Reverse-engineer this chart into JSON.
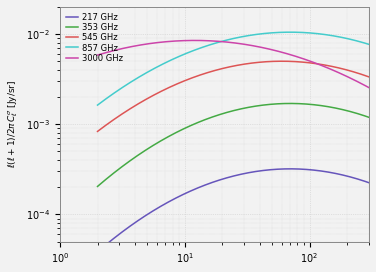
{
  "ylabel": "$\\ell(\\ell+1)/2\\pi\\, C_\\ell^{\\sigma}$ [Jy/sr]",
  "xlim": [
    1,
    300
  ],
  "ylim": [
    5e-05,
    0.02
  ],
  "channel_params": [
    {
      "color": "#6655bb",
      "label": "217 GHz",
      "A": 0.00032,
      "ell_peak": 70,
      "sigma_log": 0.75
    },
    {
      "color": "#44aa44",
      "label": "353 GHz",
      "A": 0.0017,
      "ell_peak": 70,
      "sigma_log": 0.75
    },
    {
      "color": "#dd5555",
      "label": "545 GHz",
      "A": 0.005,
      "ell_peak": 60,
      "sigma_log": 0.78
    },
    {
      "color": "#44cccc",
      "label": "857 GHz",
      "A": 0.0105,
      "ell_peak": 70,
      "sigma_log": 0.8
    },
    {
      "color": "#cc44aa",
      "label": "3000 GHz",
      "A": 0.0085,
      "ell_peak": 12,
      "sigma_log": 0.9
    }
  ],
  "grid_color": "#cccccc",
  "bg_color": "#f2f2f2",
  "linewidth": 1.1
}
